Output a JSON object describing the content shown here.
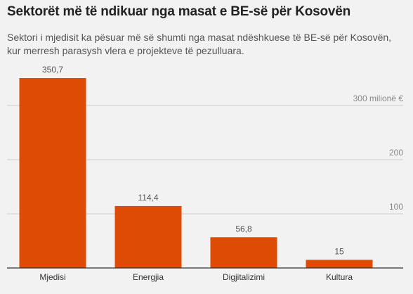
{
  "chart_data": {
    "type": "bar",
    "title": "Sektorët më të ndikuar nga masat e BE-së për Kosovën",
    "subtitle": "Sektori i mjedisit ka pësuar më së shumti nga masat ndëshkuese të BE-së për Kosovën, kur merresh parasysh vlera e projekteve të pezulluara.",
    "categories": [
      "Mjedisi",
      "Energjia",
      "Digjitalizimi",
      "Kultura"
    ],
    "values": [
      350.7,
      114.4,
      56.8,
      15
    ],
    "value_labels": [
      "350,7",
      "114,4",
      "56,8",
      "15"
    ],
    "yticks": [
      {
        "value": 100,
        "label": "100"
      },
      {
        "value": 200,
        "label": "200"
      },
      {
        "value": 300,
        "label": "300 milionë €"
      }
    ],
    "ylim": [
      0,
      350.7
    ],
    "grid": true,
    "colors": {
      "bar": "#dd4b05",
      "background": "#f2f2f2"
    }
  }
}
